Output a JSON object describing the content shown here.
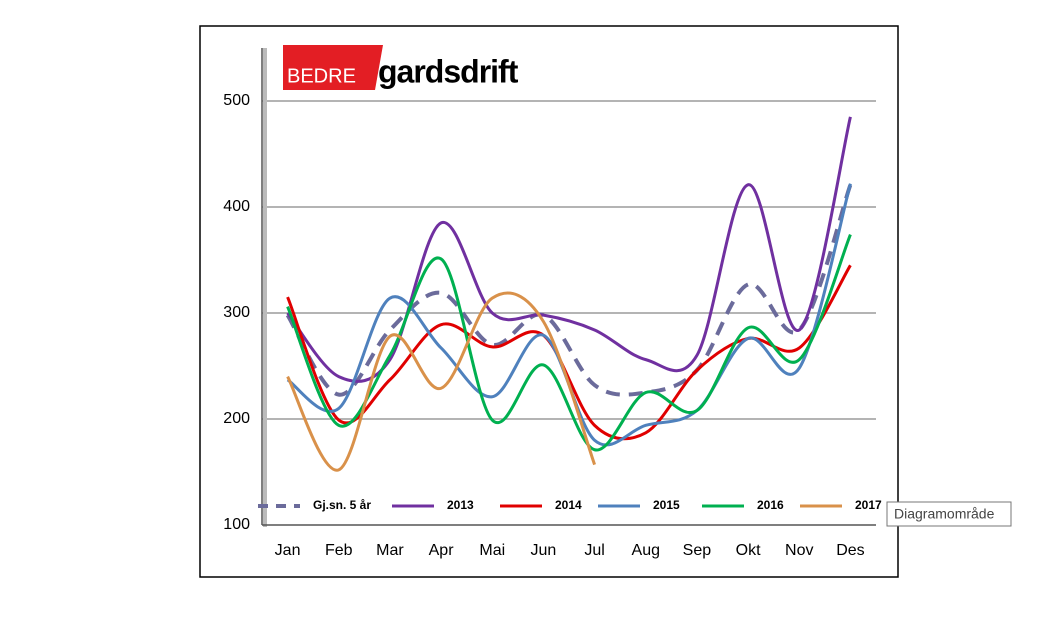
{
  "logo": {
    "red": "BEDRE",
    "black": "gardsdrift"
  },
  "tooltip": "Diagramområde",
  "chart_data": {
    "type": "line",
    "smooth": true,
    "categories": [
      "Jan",
      "Feb",
      "Mar",
      "Apr",
      "Mai",
      "Jun",
      "Jul",
      "Aug",
      "Sep",
      "Okt",
      "Nov",
      "Des"
    ],
    "ylim": [
      100,
      550
    ],
    "yticks": [
      100,
      200,
      300,
      400,
      500
    ],
    "grid": true,
    "legend": "bottom",
    "series": [
      {
        "name": "Gj.sn. 5 år",
        "color": "#6b6b9b",
        "dashed": true,
        "values": [
          298,
          223,
          284,
          319,
          270,
          298,
          232,
          225,
          246,
          327,
          284,
          421
        ]
      },
      {
        "name": "2013",
        "color": "#7030a0",
        "values": [
          300,
          240,
          256,
          385,
          300,
          298,
          284,
          256,
          260,
          421,
          284,
          485
        ]
      },
      {
        "name": "2014",
        "color": "#e00000",
        "values": [
          315,
          199,
          237,
          289,
          268,
          279,
          194,
          187,
          246,
          276,
          267,
          345
        ]
      },
      {
        "name": "2015",
        "color": "#4f81bd",
        "values": [
          237,
          210,
          314,
          267,
          221,
          279,
          180,
          194,
          208,
          276,
          248,
          422
        ]
      },
      {
        "name": "2016",
        "color": "#00b050",
        "values": [
          306,
          194,
          260,
          351,
          199,
          251,
          171,
          225,
          208,
          286,
          256,
          374
        ]
      },
      {
        "name": "2017",
        "color": "#d9914a",
        "values": [
          240,
          152,
          278,
          229,
          314,
          292,
          157,
          null,
          null,
          null,
          null,
          null
        ]
      }
    ]
  }
}
